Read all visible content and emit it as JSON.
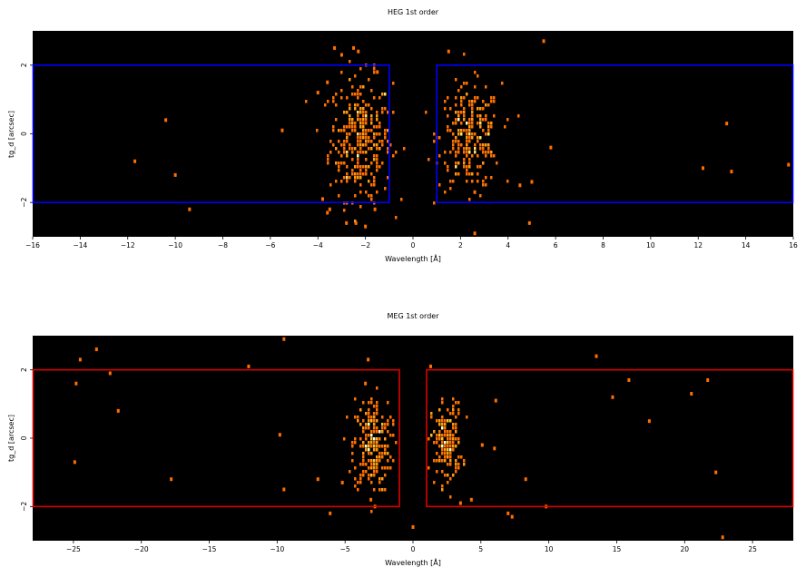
{
  "chart_data": [
    {
      "type": "heatmap",
      "title": "HEG 1st order",
      "xlabel": "Wavelength [Å]",
      "ylabel": "tg_d [arcsec]",
      "xlim": [
        -16,
        16
      ],
      "ylim": [
        -3,
        3
      ],
      "xticks": [
        -16,
        -14,
        -12,
        -10,
        -8,
        -6,
        -4,
        -2,
        0,
        2,
        4,
        6,
        8,
        10,
        12,
        14,
        16
      ],
      "yticks": [
        -2,
        0,
        2
      ],
      "background": "#000000",
      "region_color": "#0000ff",
      "regions": [
        {
          "x0": -16,
          "x1": -1.0,
          "y0": -2.0,
          "y1": 2.0
        },
        {
          "x0": 1.0,
          "x1": 16,
          "y0": -2.0,
          "y1": 2.0
        }
      ],
      "clusters": [
        {
          "cx": -2.2,
          "cy": -0.15,
          "sx": 0.65,
          "sy": 0.9,
          "n": 320
        },
        {
          "cx": 2.4,
          "cy": -0.1,
          "sx": 0.65,
          "sy": 0.75,
          "n": 260
        }
      ],
      "scatter": [
        [
          -11.7,
          -0.8
        ],
        [
          -10.4,
          0.4
        ],
        [
          -10.0,
          -1.2
        ],
        [
          -9.4,
          -2.2
        ],
        [
          -5.5,
          0.1
        ],
        [
          -4.0,
          1.2
        ],
        [
          -3.6,
          1.5
        ],
        [
          -3.3,
          2.5
        ],
        [
          -3.0,
          2.3
        ],
        [
          -2.5,
          2.5
        ],
        [
          -2.3,
          2.4
        ],
        [
          -1.5,
          1.8
        ],
        [
          -3.8,
          -1.9
        ],
        [
          -3.6,
          -2.3
        ],
        [
          -2.8,
          -2.6
        ],
        [
          -2.4,
          -2.6
        ],
        [
          -2.0,
          -2.7
        ],
        [
          -1.6,
          -2.2
        ],
        [
          -3.5,
          -2.2
        ],
        [
          2.6,
          -1.7
        ],
        [
          1.5,
          2.4
        ],
        [
          5.5,
          2.7
        ],
        [
          4.5,
          -1.5
        ],
        [
          5.0,
          -1.4
        ],
        [
          4.9,
          -2.6
        ],
        [
          2.6,
          -2.9
        ],
        [
          5.8,
          -0.4
        ],
        [
          12.2,
          -1.0
        ],
        [
          13.2,
          0.3
        ],
        [
          13.4,
          -1.1
        ],
        [
          15.8,
          -0.9
        ]
      ],
      "colors": [
        "#ff6f00",
        "#ff9a10",
        "#ffbe30",
        "#ffe070",
        "#ffffb8"
      ]
    },
    {
      "type": "heatmap",
      "title": "MEG 1st order",
      "xlabel": "Wavelength [Å]",
      "ylabel": "tg_d [arcsec]",
      "xlim": [
        -28,
        28
      ],
      "ylim": [
        -3,
        3
      ],
      "xticks": [
        -25,
        -20,
        -15,
        -10,
        -5,
        0,
        5,
        10,
        15,
        20,
        25
      ],
      "yticks": [
        -2,
        0,
        2
      ],
      "background": "#000000",
      "region_color": "#dd0000",
      "regions": [
        {
          "x0": -28,
          "x1": -1.0,
          "y0": -2.0,
          "y1": 2.0
        },
        {
          "x0": 1.0,
          "x1": 28,
          "y0": -2.0,
          "y1": 2.0
        }
      ],
      "clusters": [
        {
          "cx": -3.0,
          "cy": -0.2,
          "sx": 0.7,
          "sy": 0.7,
          "n": 230
        },
        {
          "cx": 2.5,
          "cy": -0.15,
          "sx": 0.55,
          "sy": 0.6,
          "n": 170
        }
      ],
      "scatter": [
        [
          -24.5,
          2.3
        ],
        [
          -23.3,
          2.6
        ],
        [
          -24.8,
          1.6
        ],
        [
          -22.3,
          1.9
        ],
        [
          -21.7,
          0.8
        ],
        [
          -24.9,
          -0.7
        ],
        [
          -17.8,
          -1.2
        ],
        [
          -12.1,
          2.1
        ],
        [
          -9.5,
          2.9
        ],
        [
          -9.8,
          0.1
        ],
        [
          -9.5,
          -1.5
        ],
        [
          -7.0,
          -1.2
        ],
        [
          -5.2,
          -1.3
        ],
        [
          -6.1,
          -2.2
        ],
        [
          -3.3,
          2.3
        ],
        [
          -3.5,
          1.6
        ],
        [
          -3.1,
          -1.8
        ],
        [
          -2.8,
          -2.0
        ],
        [
          0.0,
          -2.6
        ],
        [
          1.3,
          2.1
        ],
        [
          3.5,
          -1.9
        ],
        [
          4.3,
          -1.8
        ],
        [
          5.1,
          -0.2
        ],
        [
          6.1,
          1.1
        ],
        [
          6.0,
          -0.3
        ],
        [
          8.3,
          -1.2
        ],
        [
          7.0,
          -2.2
        ],
        [
          9.8,
          -2.0
        ],
        [
          7.3,
          -2.3
        ],
        [
          13.5,
          2.4
        ],
        [
          14.7,
          1.2
        ],
        [
          15.9,
          1.7
        ],
        [
          17.4,
          0.5
        ],
        [
          20.5,
          1.3
        ],
        [
          21.7,
          1.7
        ],
        [
          22.3,
          -1.0
        ],
        [
          22.8,
          -2.9
        ]
      ],
      "colors": [
        "#ff6f00",
        "#ff9a10",
        "#ffbe30",
        "#ffe070",
        "#ffffb8"
      ]
    }
  ]
}
